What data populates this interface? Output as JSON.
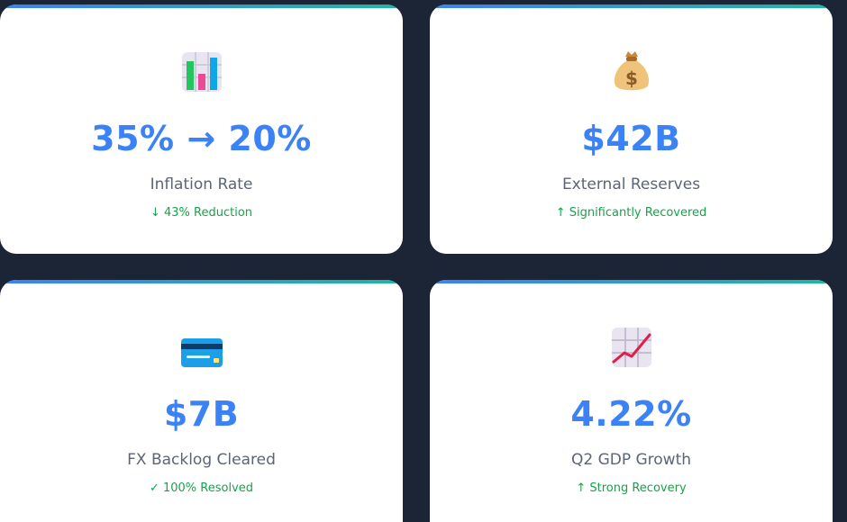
{
  "cards": [
    {
      "icon": "bar-chart-icon",
      "value": "35% → 20%",
      "label": "Inflation Rate",
      "change": "↓ 43% Reduction"
    },
    {
      "icon": "money-bag-icon",
      "value": "$42B",
      "label": "External Reserves",
      "change": "↑ Significantly Recovered"
    },
    {
      "icon": "credit-card-icon",
      "value": "$7B",
      "label": "FX Backlog Cleared",
      "change": "✓ 100% Resolved"
    },
    {
      "icon": "chart-increasing-icon",
      "value": "4.22%",
      "label": "Q2 GDP Growth",
      "change": "↑ Strong Recovery"
    }
  ],
  "colors": {
    "background": "#1c2536",
    "card": "#ffffff",
    "value": "#3b82f6",
    "label": "#5b6577",
    "change": "#16a34a",
    "accent_gradient_start": "#3b82f6",
    "accent_gradient_end": "#22b5a0"
  }
}
